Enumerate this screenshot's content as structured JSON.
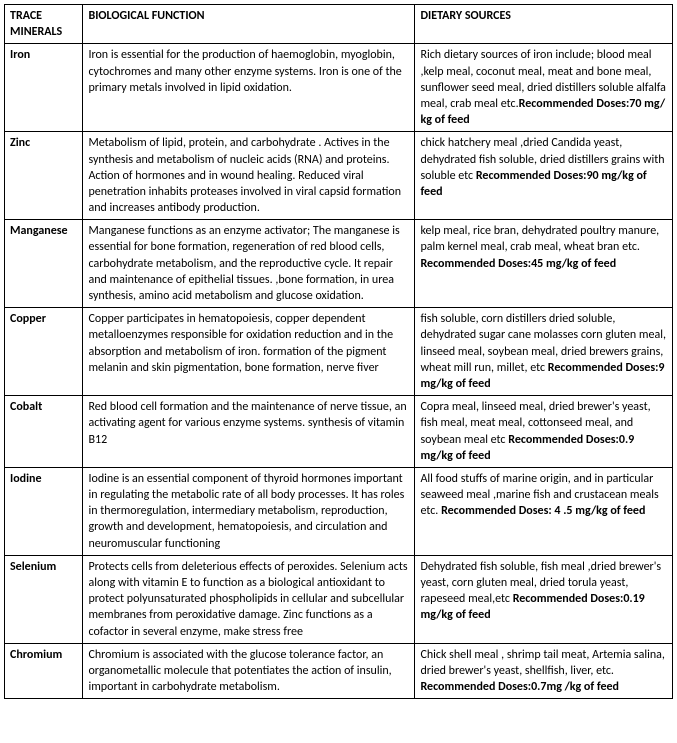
{
  "headers": {
    "col0": "TRACE MINERALS",
    "col1": "BIOLOGICAL FUNCTION",
    "col2": "DIETARY  SOURCES"
  },
  "rows": [
    {
      "mineral": "Iron",
      "function": "Iron is essential for the production of haemoglobin, myoglobin, cytochromes and many other enzyme  systems. Iron is one of the primary metals involved in lipid oxidation.",
      "sources": "Rich dietary sources of iron include; blood meal ,kelp meal, coconut meal, meat and bone meal, sunflower seed meal, dried distillers soluble  alfalfa meal, crab meal etc.",
      "rec_label": "Recommended Doses:",
      "rec_value": "70 mg/ kg of feed"
    },
    {
      "mineral": "Zinc",
      "function": " Metabolism of  lipid, protein, and carbohydrate . Actives in the synthesis and metabolism  of nucleic acids (RNA) and proteins. Action of hormones and in wound healing. Reduced viral penetration inhabits proteases involved in viral capsid formation and increases antibody production.",
      "sources": "chick hatchery meal ,dried Candida yeast, dehydrated fish soluble, dried distillers grains with soluble etc ",
      "rec_label": "Recommended Doses:",
      "rec_value": "90 mg/kg of feed"
    },
    {
      "mineral": "Manganese",
      "function": "Manganese functions as an enzyme activator; The manganese is essential for bone formation, regeneration of red blood cells, carbohydrate metabolism,  and the reproductive cycle. It repair and maintenance of epithelial tissues. ,bone formation, in urea synthesis, amino acid metabolism and glucose oxidation.",
      "sources": "kelp meal, rice bran, dehydrated poultry manure, palm kernel meal, crab meal, wheat bran etc. ",
      "rec_label": "Recommended Doses:",
      "rec_value": "45 mg/kg of feed"
    },
    {
      "mineral": "Copper",
      "function": "Copper participates in hematopoiesis, copper dependent metalloenzymes responsible for oxidation reduction and in the absorption and metabolism  of iron. formation of the pigment melanin and skin pigmentation,  bone formation, nerve fiver",
      "sources": "fish soluble, corn distillers dried soluble, dehydrated sugar cane molasses  corn gluten meal,  linseed meal, soybean meal, dried brewers grains, wheat mill run, millet, etc ",
      "rec_label": "Recommended Doses:",
      "rec_value": "9 mg/kg of feed"
    },
    {
      "mineral": "Cobalt",
      "function": "Red blood cell formation  and the maintenance of nerve tissue, an activating  agent for various enzyme systems. synthesis of vitamin  B12",
      "sources": "Copra meal, linseed meal, dried brewer's yeast, fish meal, meat meal, cottonseed meal, and soybean meal  etc ",
      "rec_label": "Recommended Doses:",
      "rec_value": "0.9  mg/kg of feed"
    },
    {
      "mineral": "Iodine",
      "function": "Iodine is an essential component of thyroid hormones important in regulating the metabolic rate of all body processes. It has roles in thermoregulation, intermediary metabolism, reproduction, growth and development, hematopoiesis, and circulation and neuromuscular functioning",
      "sources": "All food stuffs of marine origin, and in particular seaweed meal ,marine fish and crustacean meals etc. ",
      "rec_label": "Recommended Doses:",
      "rec_value": " 4 .5 mg/kg of feed"
    },
    {
      "mineral": "Selenium",
      "function": "Protects cells from deleterious effects of peroxides. Selenium acts along with vitamin E to function as a biological antioxidant to protect polyunsaturated  phospholipids in cellular and subcellular membranes from peroxidative damage. Zinc functions as a cofactor in several enzyme, make stress free",
      "sources": "Dehydrated fish soluble, fish meal ,dried brewer's yeast, corn gluten meal, dried torula yeast, rapeseed meal,etc ",
      "rec_label": "Recommended Doses:",
      "rec_value": "0.19 mg/kg of feed"
    },
    {
      "mineral": "Chromium",
      "function": "Chromium is associated  with the glucose tolerance factor, an organometallic molecule that potentiates the action of insulin, important in carbohydrate metabolism.",
      "sources": "Chick shell meal , shrimp tail meat, Artemia salina, dried brewer's yeast, shellfish, liver, etc. ",
      "rec_label": "Recommended Doses:",
      "rec_value": "0.7mg /kg of feed"
    }
  ]
}
